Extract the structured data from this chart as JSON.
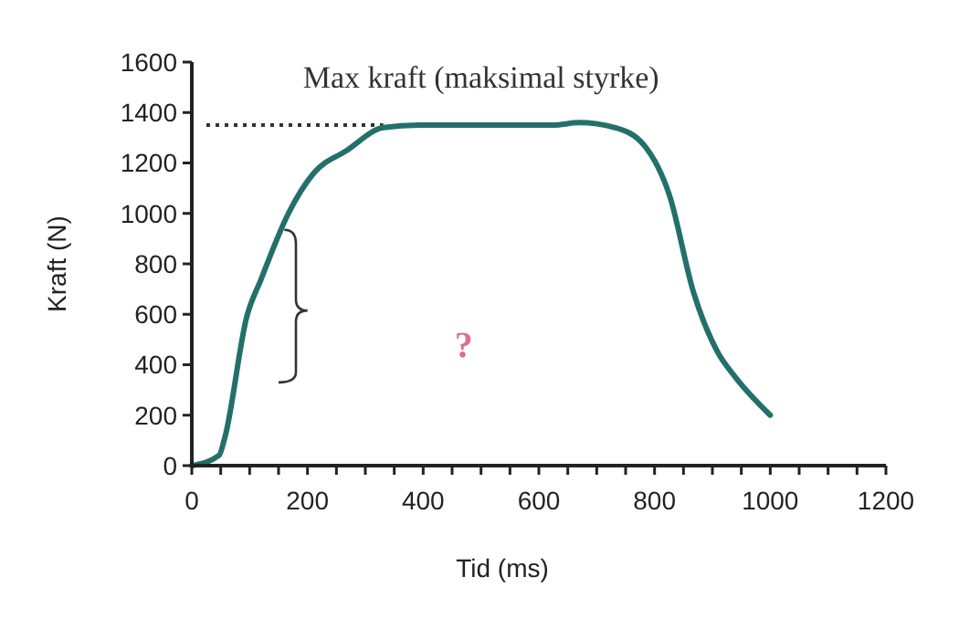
{
  "chart_data": {
    "type": "line",
    "xlabel": "Tid (ms)",
    "ylabel": "Kraft (N)",
    "xlim": [
      0,
      1200
    ],
    "xticks": [
      0,
      200,
      400,
      600,
      800,
      1000,
      1200
    ],
    "ylim": [
      0,
      1600
    ],
    "yticks": [
      0,
      200,
      400,
      600,
      800,
      1000,
      1200,
      1400,
      1600
    ],
    "grid": false,
    "line_style": "solid",
    "series": [
      {
        "color": "#23706a",
        "x": [
          0,
          47,
          57,
          95,
          120,
          167,
          211,
          268,
          331,
          394,
          500,
          625,
          669,
          732,
          782,
          826,
          867,
          909,
          940,
          1000
        ],
        "values": [
          0,
          40,
          110,
          590,
          740,
          1000,
          1160,
          1250,
          1340,
          1350,
          1350,
          1350,
          1360,
          1340,
          1270,
          1070,
          690,
          450,
          350,
          200
        ]
      }
    ],
    "ref_lines": [
      {
        "axis": "y",
        "value": 1350,
        "line_style": "dotted",
        "color": "#333333"
      }
    ],
    "annotations": [
      "Max kraft (maksimal styrke)",
      "?"
    ]
  }
}
